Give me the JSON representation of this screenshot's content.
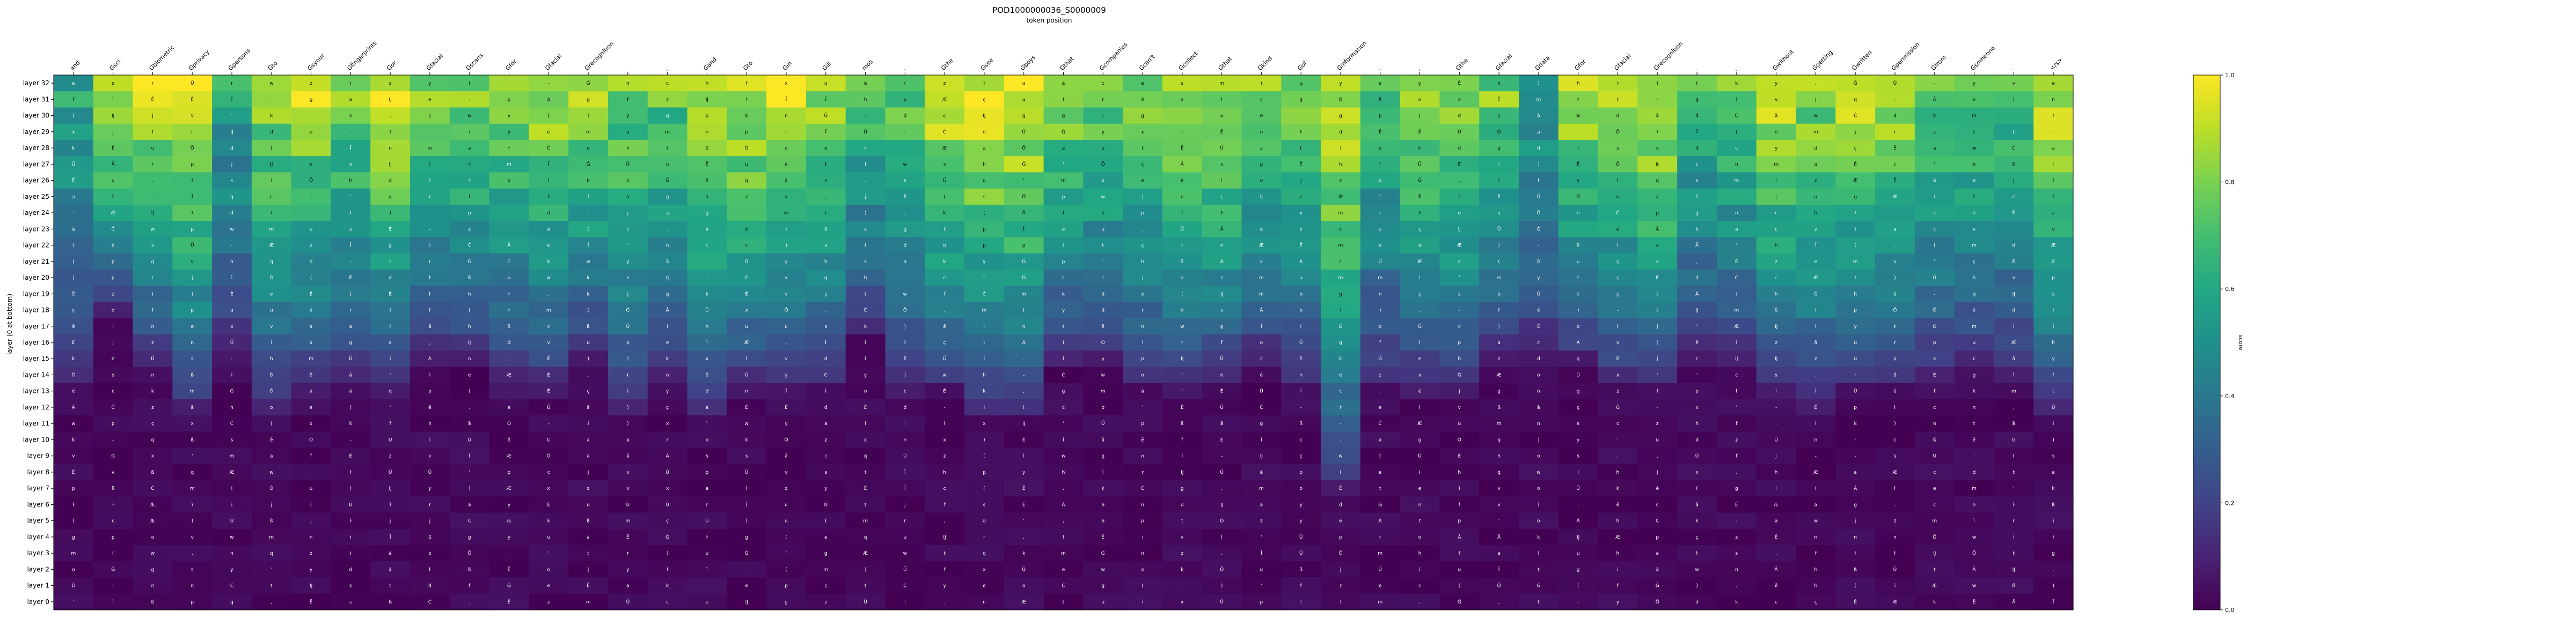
{
  "chart_data": {
    "type": "heatmap",
    "title": "POD1000000036_S0000009",
    "subtitle": "token position",
    "ylabel": "layer (0 at bottom)",
    "colorbar_label": "score",
    "colormap": "viridis",
    "value_range": [
      0.0,
      1.0
    ],
    "colorbar_ticks": [
      "0.0",
      "0.2",
      "0.4",
      "0.6",
      "0.8",
      "1.0"
    ],
    "x_tokens": [
      "and",
      "Gsci",
      "Gbiometric",
      "Gprivacy",
      "Gpersons",
      "Gto",
      "Gsyour",
      "Gfingerprints",
      "Gor",
      "Gfacial",
      "Gscans",
      "Gfor",
      "Gfacial",
      "Grecognition",
      ".",
      ",",
      "Gand",
      "Gto",
      "Gin",
      "Gill",
      "mos",
      ".",
      "Gthe",
      "Gsee",
      "Gboys",
      "Gthat",
      "Gcompanies",
      "Gcan't",
      "Gcollect",
      "Gthat",
      "Gkind",
      "Gof",
      "Ginformation",
      ".",
      ",",
      "Gthe",
      "Gfacial",
      "Gdata",
      "Gfor",
      "Gfacial",
      "Grecognition",
      ".",
      ",",
      "Gwithout",
      "Ggetting",
      "Gwritten",
      "Gpermission",
      "Gfrom",
      "Gsomeone",
      ".",
      "</s>"
    ],
    "layers": [
      "layer 32",
      "layer 31",
      "layer 30",
      "layer 29",
      "layer 28",
      "layer 27",
      "layer 26",
      "layer 25",
      "layer 24",
      "layer 23",
      "layer 22",
      "layer 21",
      "layer 20",
      "layer 19",
      "layer 18",
      "layer 17",
      "layer 16",
      "layer 15",
      "layer 14",
      "layer 13",
      "layer 12",
      "layer 11",
      "layer 10",
      "layer 9",
      "layer 8",
      "layer 7",
      "layer 6",
      "layer 5",
      "layer 4",
      "layer 3",
      "layer 2",
      "layer 1",
      "layer 0"
    ],
    "column_peaks": [
      0.62,
      0.95,
      0.93,
      0.94,
      0.6,
      0.85,
      0.9,
      0.8,
      0.95,
      0.8,
      0.85,
      0.8,
      0.88,
      0.85,
      0.82,
      0.78,
      0.92,
      0.95,
      0.93,
      0.85,
      0.72,
      0.78,
      0.97,
      0.98,
      0.98,
      0.85,
      0.8,
      0.82,
      0.92,
      0.9,
      0.82,
      0.78,
      0.96,
      0.7,
      0.85,
      0.9,
      0.8,
      0.62,
      0.9,
      0.85,
      0.96,
      0.7,
      0.78,
      0.92,
      0.85,
      0.9,
      0.88,
      0.75,
      0.82,
      0.7,
      0.95
    ],
    "column_onsets": [
      0.4,
      0.55,
      0.45,
      0.35,
      0.45,
      0.35,
      0.4,
      0.4,
      0.4,
      0.45,
      0.45,
      0.4,
      0.4,
      0.45,
      0.35,
      0.4,
      0.35,
      0.4,
      0.4,
      0.4,
      0.5,
      0.4,
      0.4,
      0.35,
      0.35,
      0.45,
      0.45,
      0.4,
      0.4,
      0.4,
      0.45,
      0.4,
      0.2,
      0.4,
      0.4,
      0.4,
      0.45,
      0.45,
      0.45,
      0.4,
      0.4,
      0.45,
      0.45,
      0.4,
      0.35,
      0.4,
      0.4,
      0.4,
      0.45,
      0.4,
      0.35
    ],
    "bottom_score": 0.02,
    "cell_glyphs": [
      "a",
      "o",
      "e",
      "s",
      "t",
      "i",
      "n",
      "m",
      "r",
      "l",
      "d",
      "u",
      "c",
      "h",
      "w",
      "y",
      "k",
      "j",
      "g",
      "p",
      "f",
      "v",
      "x",
      "q",
      "z",
      ".",
      ",",
      "'",
      "-",
      "(",
      ")",
      "Ā",
      "Ġ",
      "Ċ",
      "ā",
      "ì",
      "ç",
      "Æ",
      "ß",
      "Ĳ",
      "ŀ",
      "Ē",
      "ē",
      "Ě",
      "Ī",
      "Ō",
      "Ũ",
      "Ű"
    ]
  }
}
